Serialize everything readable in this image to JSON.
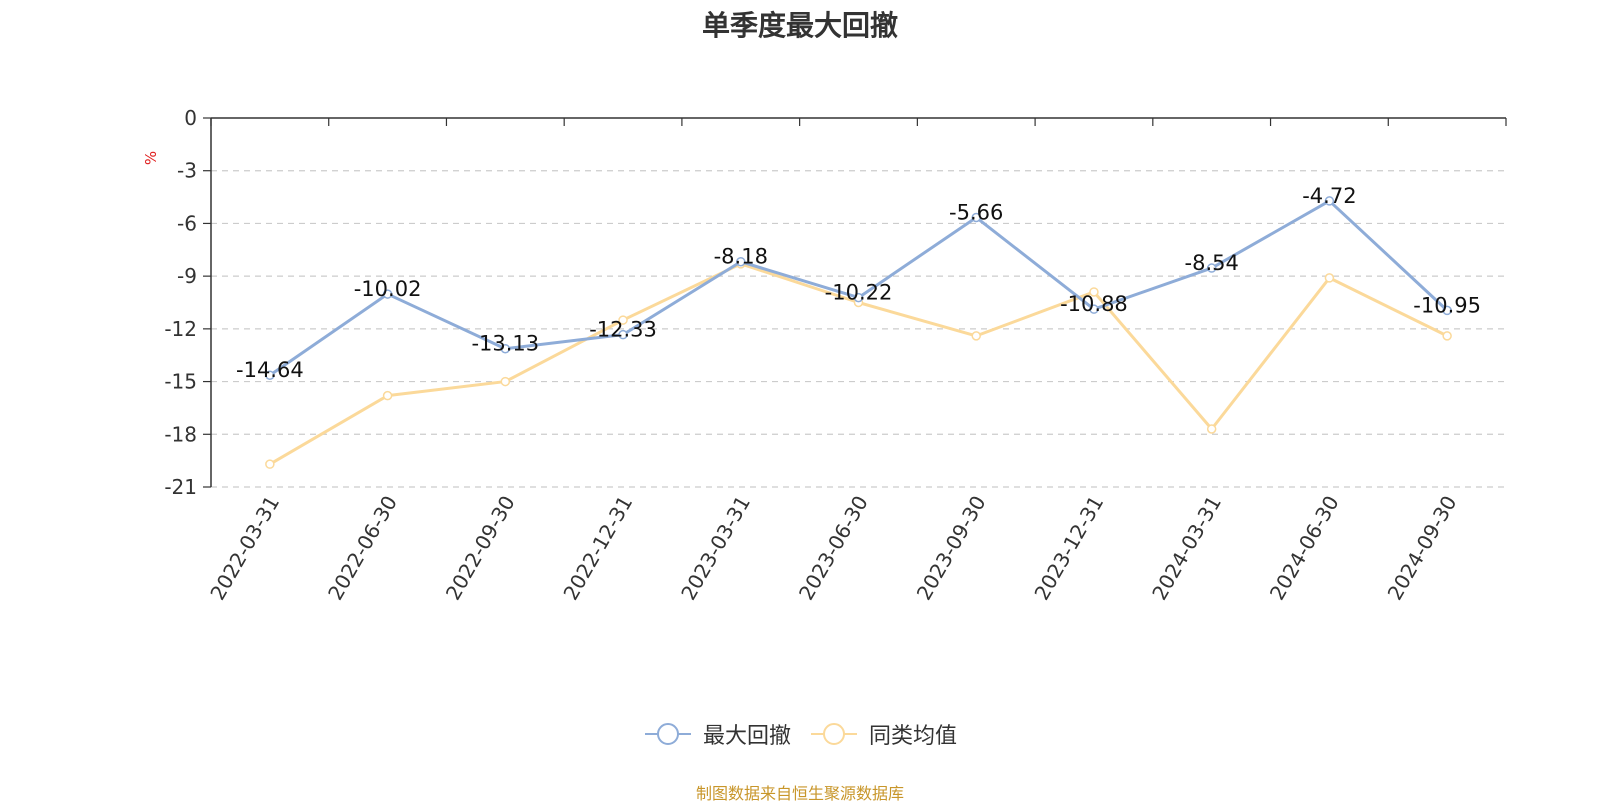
{
  "chart_data": {
    "type": "line",
    "title": "单季度最大回撤",
    "ylabel": "%",
    "xlabel": "",
    "categories": [
      "2022-03-31",
      "2022-06-30",
      "2022-09-30",
      "2022-12-31",
      "2023-03-31",
      "2023-06-30",
      "2023-09-30",
      "2023-12-31",
      "2024-03-31",
      "2024-06-30",
      "2024-09-30"
    ],
    "ylim": [
      -21,
      0
    ],
    "yticks": [
      0,
      -3,
      -6,
      -9,
      -12,
      -15,
      -18,
      -21
    ],
    "grid": true,
    "legend_position": "bottom",
    "series": [
      {
        "name": "最大回撤",
        "color": "#8eacd8",
        "values": [
          -14.64,
          -10.02,
          -13.13,
          -12.33,
          -8.18,
          -10.22,
          -5.66,
          -10.88,
          -8.54,
          -4.72,
          -10.95
        ],
        "show_labels": true
      },
      {
        "name": "同类均值",
        "color": "#fbd99a",
        "values": [
          -19.7,
          -15.8,
          -15.0,
          -11.5,
          -8.3,
          -10.5,
          -12.4,
          -9.9,
          -17.7,
          -9.1,
          -12.4
        ],
        "show_labels": false
      }
    ]
  },
  "footer": {
    "source": "制图数据来自恒生聚源数据库"
  }
}
